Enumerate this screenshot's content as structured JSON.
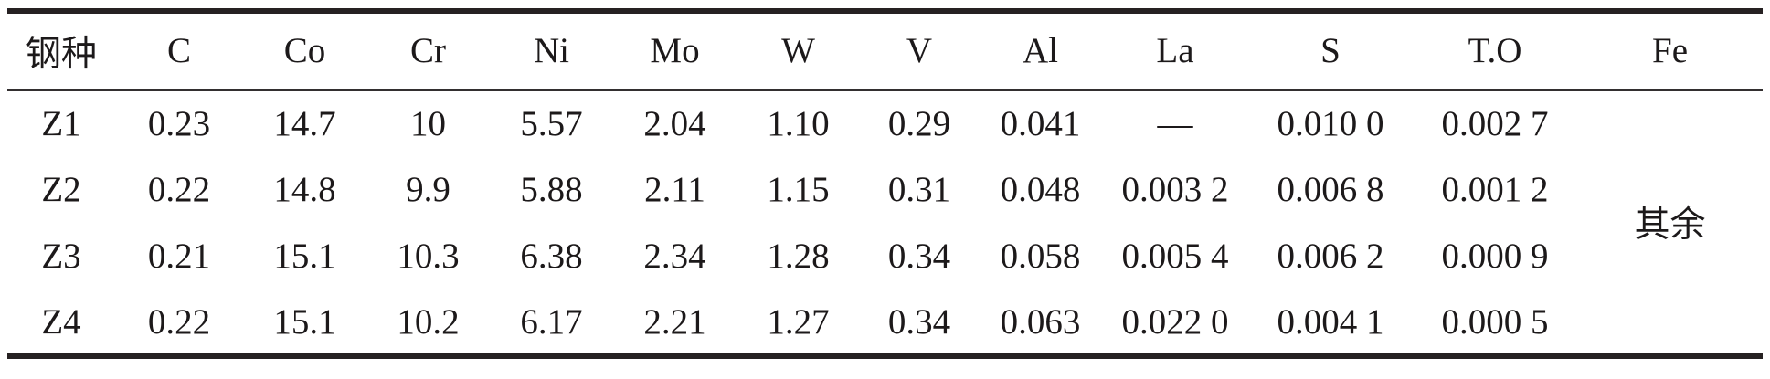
{
  "table": {
    "columns": [
      "钢种",
      "C",
      "Co",
      "Cr",
      "Ni",
      "Mo",
      "W",
      "V",
      "Al",
      "La",
      "S",
      "T.O",
      "Fe"
    ],
    "rows": [
      {
        "steel": "Z1",
        "values": [
          "0.23",
          "14.7",
          "10",
          "5.57",
          "2.04",
          "1.10",
          "0.29",
          "0.041",
          "—",
          "0.010 0",
          "0.002 7"
        ]
      },
      {
        "steel": "Z2",
        "values": [
          "0.22",
          "14.8",
          "9.9",
          "5.88",
          "2.11",
          "1.15",
          "0.31",
          "0.048",
          "0.003 2",
          "0.006 8",
          "0.001 2"
        ]
      },
      {
        "steel": "Z3",
        "values": [
          "0.21",
          "15.1",
          "10.3",
          "6.38",
          "2.34",
          "1.28",
          "0.34",
          "0.058",
          "0.005 4",
          "0.006 2",
          "0.000 9"
        ]
      },
      {
        "steel": "Z4",
        "values": [
          "0.22",
          "15.1",
          "10.2",
          "6.17",
          "2.21",
          "1.27",
          "0.34",
          "0.063",
          "0.022 0",
          "0.004 1",
          "0.000 5"
        ]
      }
    ],
    "fe_balance": "其余"
  },
  "colors": {
    "ink": "#1c191a",
    "thick_rule": "#262122",
    "thin_rule": "#332f30",
    "background": "#ffffff"
  }
}
